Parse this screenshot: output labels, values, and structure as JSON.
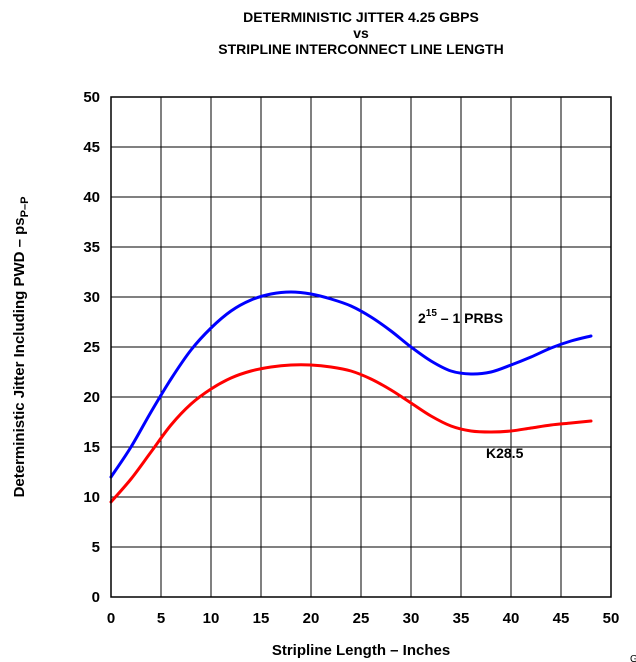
{
  "chart_data": {
    "type": "line",
    "title_lines": [
      "DETERMINISTIC JITTER 4.25 GBPS",
      "vs",
      "STRIPLINE INTERCONNECT LINE LENGTH"
    ],
    "xlabel": "Stripline Length – Inches",
    "ylabel_main": "Deterministic Jitter Including PWD – ps",
    "ylabel_sub": "P–P",
    "xlim": [
      0,
      50
    ],
    "ylim": [
      0,
      50
    ],
    "x_ticks": [
      "0",
      "5",
      "10",
      "15",
      "20",
      "25",
      "30",
      "35",
      "40",
      "45",
      "50"
    ],
    "y_ticks": [
      "0",
      "5",
      "10",
      "15",
      "20",
      "25",
      "30",
      "35",
      "40",
      "45",
      "50"
    ],
    "grid": true,
    "series": [
      {
        "name_base": "2",
        "name_sup": "15",
        "name_rest": " – 1 PRBS",
        "color": "#0000ff",
        "x": [
          0,
          2,
          4,
          6,
          8,
          10,
          12,
          14,
          16,
          18,
          20,
          22,
          24,
          26,
          28,
          30,
          32,
          34,
          36,
          38,
          40,
          42,
          44,
          46,
          48
        ],
        "y": [
          12,
          15,
          18.5,
          21.8,
          24.7,
          26.9,
          28.6,
          29.7,
          30.3,
          30.5,
          30.3,
          29.8,
          29.1,
          28.0,
          26.6,
          25.0,
          23.6,
          22.6,
          22.3,
          22.5,
          23.2,
          24.0,
          24.9,
          25.6,
          26.1
        ]
      },
      {
        "name": "K28.5",
        "color": "#ff0000",
        "x": [
          0,
          2,
          4,
          6,
          8,
          10,
          12,
          14,
          16,
          18,
          20,
          22,
          24,
          26,
          28,
          30,
          32,
          34,
          36,
          38,
          40,
          42,
          44,
          46,
          48
        ],
        "y": [
          9.5,
          11.8,
          14.5,
          17.2,
          19.3,
          20.8,
          21.9,
          22.6,
          23.0,
          23.2,
          23.2,
          23.0,
          22.6,
          21.8,
          20.7,
          19.4,
          18.1,
          17.1,
          16.6,
          16.5,
          16.6,
          16.9,
          17.2,
          17.4,
          17.6
        ]
      }
    ]
  },
  "corner_mark": "G"
}
